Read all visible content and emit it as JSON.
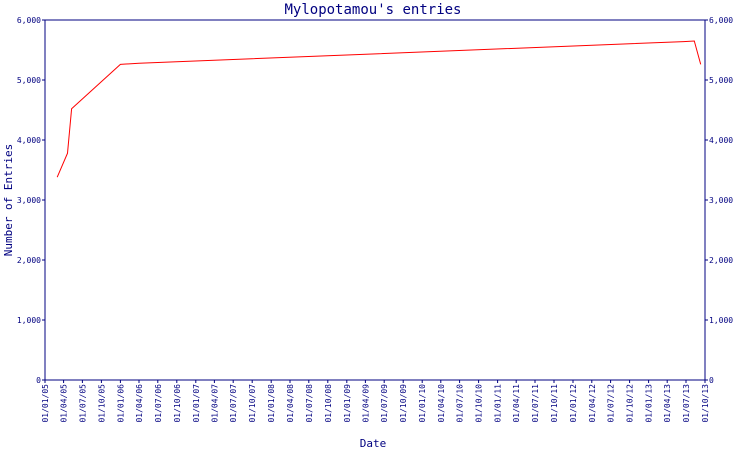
{
  "chart_data": {
    "type": "line",
    "title": "Mylopotamou's entries",
    "xlabel": "Date",
    "ylabel": "Number of Entries",
    "ylim": [
      0,
      6000
    ],
    "y_ticks": [
      0,
      1000,
      2000,
      3000,
      4000,
      5000,
      6000
    ],
    "y_tick_labels": [
      "0",
      "1,000",
      "2,000",
      "3,000",
      "4,000",
      "5,000",
      "6,000"
    ],
    "x_range": [
      "2005-01-01",
      "2013-10-01"
    ],
    "x_tick_labels": [
      "01/01/05",
      "01/04/05",
      "01/07/05",
      "01/10/05",
      "01/01/06",
      "01/04/06",
      "01/07/06",
      "01/10/06",
      "01/01/07",
      "01/04/07",
      "01/07/07",
      "01/10/07",
      "01/01/08",
      "01/04/08",
      "01/07/08",
      "01/10/08",
      "01/01/09",
      "01/04/09",
      "01/07/09",
      "01/10/09",
      "01/01/10",
      "01/04/10",
      "01/07/10",
      "01/10/10",
      "01/01/11",
      "01/04/11",
      "01/07/11",
      "01/10/11",
      "01/01/12",
      "01/04/12",
      "01/07/12",
      "01/10/12",
      "01/01/13",
      "01/04/13",
      "01/07/13",
      "01/10/13"
    ],
    "grid": false,
    "colors": {
      "axis": "#000080",
      "series": "#ff0000",
      "background": "#ffffff"
    },
    "series": [
      {
        "x": [
          "2005-03-01",
          "2005-04-20",
          "2005-05-10",
          "2006-01-01",
          "2006-04-01",
          "2013-06-20",
          "2013-08-10",
          "2013-09-10"
        ],
        "y": [
          3380,
          3780,
          4520,
          5260,
          5280,
          5640,
          5650,
          5260
        ]
      }
    ]
  }
}
